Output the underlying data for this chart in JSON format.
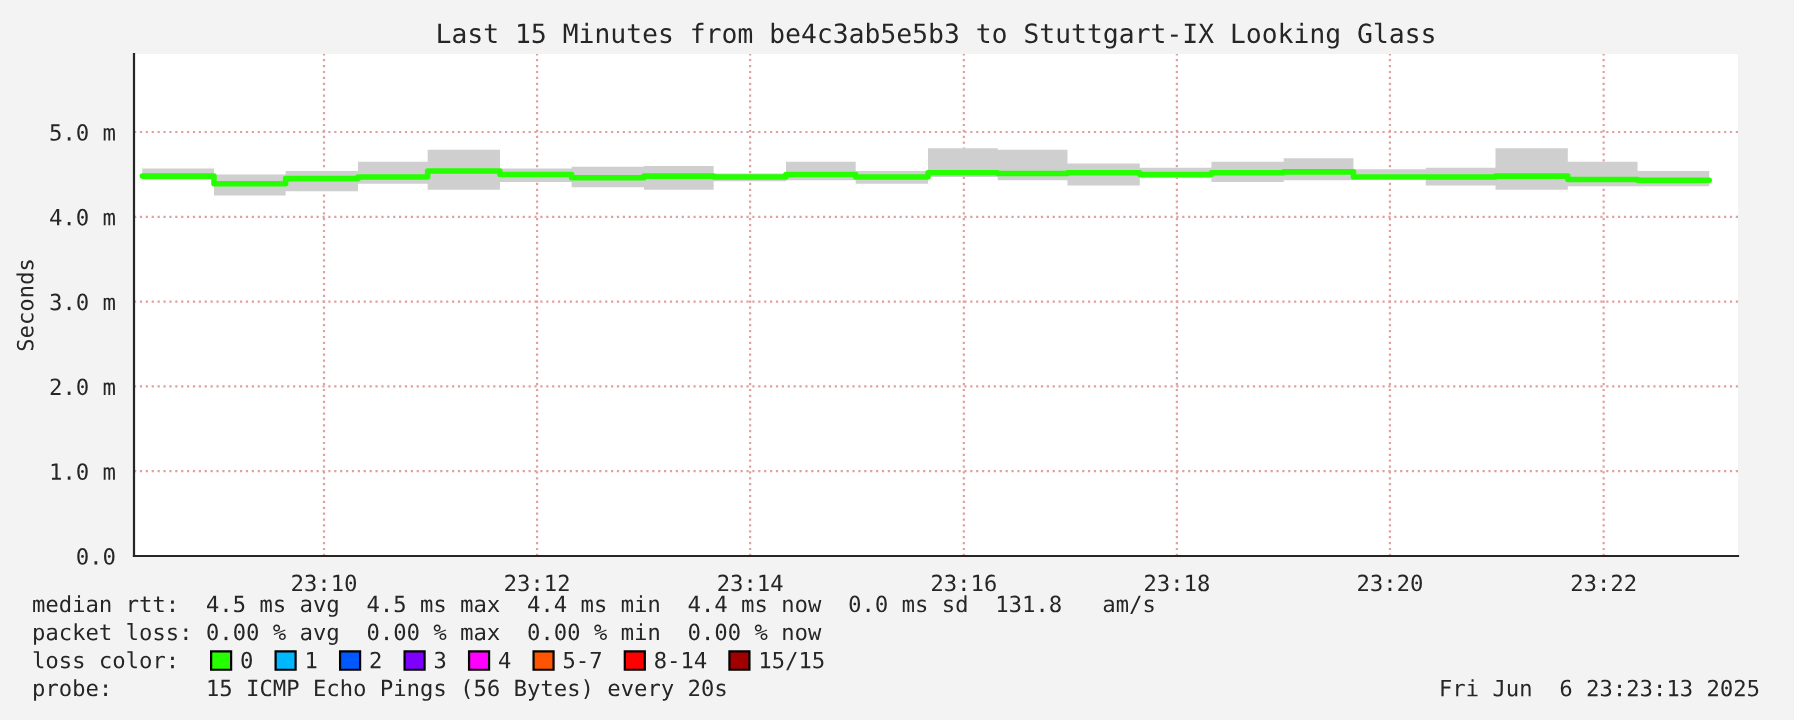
{
  "chart_data": {
    "type": "step",
    "title": "Last 15 Minutes from be4c3ab5e5b3 to Stuttgart-IX Looking Glass",
    "ylabel": "Seconds",
    "x": [
      23.1383,
      23.1495,
      23.1607,
      23.172,
      23.1829,
      23.1942,
      23.2054,
      23.2167,
      23.2276,
      23.2389,
      23.2498,
      23.2611,
      23.272,
      23.2829,
      23.2942,
      23.3054,
      23.3167,
      23.3276,
      23.3389,
      23.3498,
      23.3611,
      23.372,
      23.3832
    ],
    "xlim": [
      23.137,
      23.3877
    ],
    "xticks": [
      {
        "value": 23.1667,
        "label": "23:10"
      },
      {
        "value": 23.2,
        "label": "23:12"
      },
      {
        "value": 23.2333,
        "label": "23:14"
      },
      {
        "value": 23.2667,
        "label": "23:16"
      },
      {
        "value": 23.3,
        "label": "23:18"
      },
      {
        "value": 23.3333,
        "label": "23:20"
      },
      {
        "value": 23.3667,
        "label": "23:22"
      }
    ],
    "ylim": [
      0,
      5.92
    ],
    "yticks": [
      {
        "value": 0,
        "label": "0.0"
      },
      {
        "value": 1,
        "label": "1.0 m"
      },
      {
        "value": 2,
        "label": "2.0 m"
      },
      {
        "value": 3,
        "label": "3.0 m"
      },
      {
        "value": 4,
        "label": "4.0 m"
      },
      {
        "value": 5,
        "label": "5.0 m"
      }
    ],
    "grid": true,
    "legend": "bottom",
    "legend_title": "loss color:",
    "series": [
      {
        "name": "0",
        "color": "#26ff00",
        "values": [
          4.48,
          4.48,
          4.39,
          4.45,
          4.47,
          4.54,
          4.5,
          4.46,
          4.48,
          4.47,
          4.5,
          4.47,
          4.52,
          4.51,
          4.52,
          4.5,
          4.52,
          4.53,
          4.47,
          4.47,
          4.48,
          4.44,
          4.43
        ],
        "lower": [
          4.44,
          4.44,
          4.25,
          4.3,
          4.39,
          4.32,
          4.41,
          4.35,
          4.32,
          4.42,
          4.43,
          4.39,
          4.47,
          4.43,
          4.37,
          4.46,
          4.41,
          4.43,
          4.47,
          4.37,
          4.32,
          4.36,
          4.36
        ],
        "upper": [
          4.57,
          4.57,
          4.5,
          4.54,
          4.65,
          4.79,
          4.57,
          4.59,
          4.6,
          4.51,
          4.65,
          4.54,
          4.81,
          4.79,
          4.63,
          4.58,
          4.65,
          4.69,
          4.56,
          4.58,
          4.81,
          4.65,
          4.54
        ]
      },
      {
        "name": "1",
        "color": "#00b8ff",
        "values": [
          null,
          null,
          null,
          null,
          null,
          null,
          null,
          null,
          null,
          null,
          null,
          null,
          null,
          null,
          null,
          null,
          null,
          null,
          null,
          null,
          null,
          null,
          null
        ]
      },
      {
        "name": "2",
        "color": "#0059ff",
        "values": [
          null,
          null,
          null,
          null,
          null,
          null,
          null,
          null,
          null,
          null,
          null,
          null,
          null,
          null,
          null,
          null,
          null,
          null,
          null,
          null,
          null,
          null,
          null
        ]
      },
      {
        "name": "3",
        "color": "#7e00ff",
        "values": [
          null,
          null,
          null,
          null,
          null,
          null,
          null,
          null,
          null,
          null,
          null,
          null,
          null,
          null,
          null,
          null,
          null,
          null,
          null,
          null,
          null,
          null,
          null
        ]
      },
      {
        "name": "4",
        "color": "#ff00ff",
        "values": [
          null,
          null,
          null,
          null,
          null,
          null,
          null,
          null,
          null,
          null,
          null,
          null,
          null,
          null,
          null,
          null,
          null,
          null,
          null,
          null,
          null,
          null,
          null
        ]
      },
      {
        "name": "5-7",
        "color": "#ff5500",
        "values": [
          null,
          null,
          null,
          null,
          null,
          null,
          null,
          null,
          null,
          null,
          null,
          null,
          null,
          null,
          null,
          null,
          null,
          null,
          null,
          null,
          null,
          null,
          null
        ]
      },
      {
        "name": "8-14",
        "color": "#ff0000",
        "values": [
          null,
          null,
          null,
          null,
          null,
          null,
          null,
          null,
          null,
          null,
          null,
          null,
          null,
          null,
          null,
          null,
          null,
          null,
          null,
          null,
          null,
          null,
          null
        ]
      },
      {
        "name": "15/15",
        "color": "#a10000",
        "values": [
          null,
          null,
          null,
          null,
          null,
          null,
          null,
          null,
          null,
          null,
          null,
          null,
          null,
          null,
          null,
          null,
          null,
          null,
          null,
          null,
          null,
          null,
          null
        ]
      }
    ],
    "annotations": [
      "median rtt:  4.5 ms avg  4.5 ms max  4.4 ms min  4.4 ms now  0.0 ms sd  131.8   am/s",
      "packet loss: 0.00 % avg  0.00 % max  0.00 % min  0.00 % now",
      "probe:       15 ICMP Echo Pings (56 Bytes) every 20s",
      "Fri Jun  6 23:23:13 2025"
    ]
  }
}
